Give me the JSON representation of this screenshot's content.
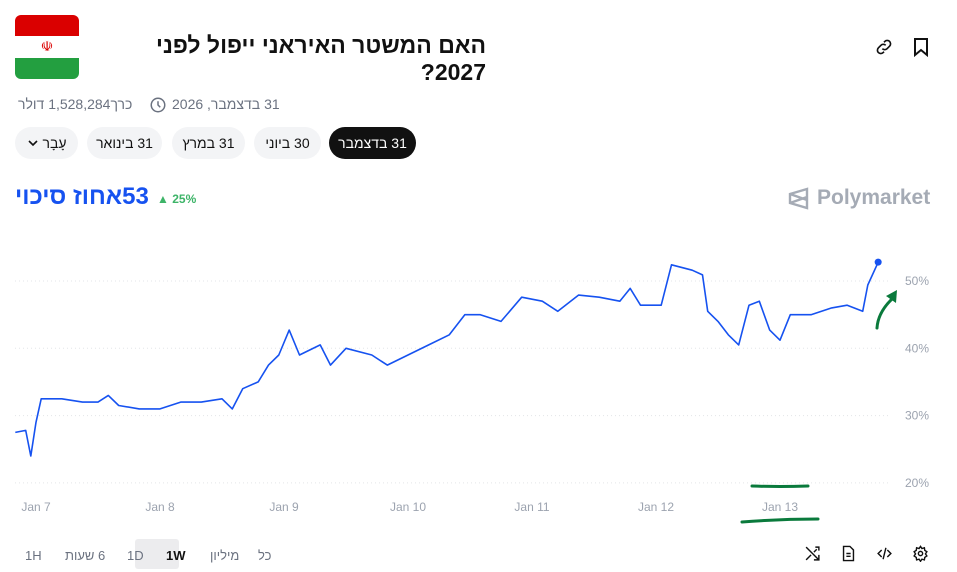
{
  "header": {
    "title": "האם המשטר האיראני ייפול לפני 2027?",
    "end_date": "31 בדצמבר, 2026",
    "volume": "כרך1,528,284 דולר",
    "flag_colors": [
      "#da0000",
      "#ffffff",
      "#239f40"
    ],
    "icons": [
      "link-icon",
      "bookmark-icon",
      "clock-icon"
    ]
  },
  "date_tabs": [
    {
      "label": "עָבָר",
      "has_chevron": true,
      "active": false
    },
    {
      "label": "31 בינואר",
      "active": false
    },
    {
      "label": "31 במרץ",
      "active": false
    },
    {
      "label": "30 ביוני",
      "active": false
    },
    {
      "label": "31 בדצמבר",
      "active": true
    }
  ],
  "summary": {
    "probability": "53אחוז סיכוי",
    "change": "25%",
    "change_direction": "up",
    "accent": "#1652f0",
    "change_color": "#3db468"
  },
  "brand": {
    "name": "Polymarket"
  },
  "chart_data": {
    "type": "line",
    "line_color": "#1652f0",
    "grid": true,
    "x_ticks": [
      "Jan 7",
      "Jan 8",
      "Jan 9",
      "Jan 10",
      "Jan 11",
      "Jan 12",
      "Jan 13"
    ],
    "y_ticks": [
      "20%",
      "30%",
      "40%",
      "50%"
    ],
    "ylim": [
      20,
      55
    ],
    "points": [
      [
        "Jan 6 20:00",
        27.5
      ],
      [
        "Jan 6 22:00",
        27.8
      ],
      [
        "Jan 6 23:00",
        24
      ],
      [
        "Jan 7 00:00",
        29
      ],
      [
        "Jan 7 01:00",
        32.5
      ],
      [
        "Jan 7 05:00",
        32.5
      ],
      [
        "Jan 7 09:00",
        32
      ],
      [
        "Jan 7 12:00",
        32
      ],
      [
        "Jan 7 14:00",
        33
      ],
      [
        "Jan 7 16:00",
        31.5
      ],
      [
        "Jan 7 20:00",
        31
      ],
      [
        "Jan 8 00:00",
        31
      ],
      [
        "Jan 8 04:00",
        32
      ],
      [
        "Jan 8 08:00",
        32
      ],
      [
        "Jan 8 12:00",
        32.5
      ],
      [
        "Jan 8 14:00",
        31
      ],
      [
        "Jan 8 16:00",
        34
      ],
      [
        "Jan 8 19:00",
        35
      ],
      [
        "Jan 8 21:00",
        37.5
      ],
      [
        "Jan 8 23:00",
        39
      ],
      [
        "Jan 9 01:00",
        42.7
      ],
      [
        "Jan 9 03:00",
        39
      ],
      [
        "Jan 9 07:00",
        40.5
      ],
      [
        "Jan 9 09:00",
        37.5
      ],
      [
        "Jan 9 12:00",
        40
      ],
      [
        "Jan 9 17:00",
        39
      ],
      [
        "Jan 9 20:00",
        37.5
      ],
      [
        "Jan 10 00:00",
        39
      ],
      [
        "Jan 10 04:00",
        40.5
      ],
      [
        "Jan 10 08:00",
        42
      ],
      [
        "Jan 10 11:00",
        45
      ],
      [
        "Jan 10 14:00",
        45
      ],
      [
        "Jan 10 18:00",
        44
      ],
      [
        "Jan 10 22:00",
        47.6
      ],
      [
        "Jan 11 02:00",
        47
      ],
      [
        "Jan 11 05:00",
        45.5
      ],
      [
        "Jan 11 09:00",
        47.9
      ],
      [
        "Jan 11 13:00",
        47.6
      ],
      [
        "Jan 11 17:00",
        47
      ],
      [
        "Jan 11 19:00",
        48.9
      ],
      [
        "Jan 11 21:00",
        46.4
      ],
      [
        "Jan 12 01:00",
        46.4
      ],
      [
        "Jan 12 03:00",
        52.4
      ],
      [
        "Jan 12 07:00",
        51.6
      ],
      [
        "Jan 12 09:00",
        50.9
      ],
      [
        "Jan 12 10:00",
        45.5
      ],
      [
        "Jan 12 12:00",
        44
      ],
      [
        "Jan 12 14:00",
        42
      ],
      [
        "Jan 12 16:00",
        40.5
      ],
      [
        "Jan 12 18:00",
        46.4
      ],
      [
        "Jan 12 20:00",
        47
      ],
      [
        "Jan 12 22:00",
        42.7
      ],
      [
        "Jan 13 00:00",
        41.2
      ],
      [
        "Jan 13 02:00",
        45
      ],
      [
        "Jan 13 06:00",
        45
      ],
      [
        "Jan 13 10:00",
        46
      ],
      [
        "Jan 13 13:00",
        46.4
      ],
      [
        "Jan 13 16:00",
        45.5
      ],
      [
        "Jan 13 17:00",
        49.4
      ],
      [
        "Jan 13 19:00",
        52.8
      ]
    ],
    "annotation_color": "#0a7a3c"
  },
  "time_ranges": [
    {
      "label": "1H",
      "selected": false
    },
    {
      "label": "6 שעות",
      "selected": false
    },
    {
      "label": "1D",
      "selected": false
    },
    {
      "label": "1W",
      "selected": true
    },
    {
      "label": "מיליון",
      "selected": false
    },
    {
      "label": "כל",
      "selected": false
    }
  ],
  "tools": [
    "shuffle-icon",
    "document-icon",
    "code-icon",
    "gear-icon"
  ]
}
